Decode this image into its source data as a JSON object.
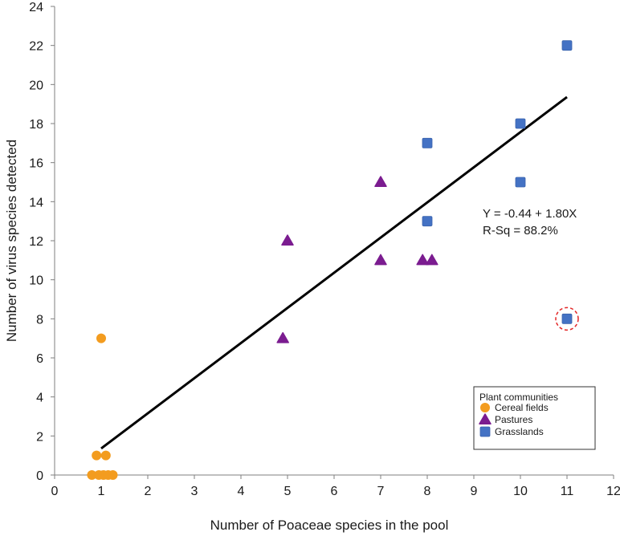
{
  "chart_data": {
    "type": "scatter",
    "xlabel": "Number of Poaceae species in the pool",
    "ylabel": "Number of virus species detected",
    "xlim": [
      0,
      12
    ],
    "ylim": [
      0,
      24
    ],
    "xticks": [
      "0",
      "1",
      "2",
      "3",
      "4",
      "5",
      "6",
      "7",
      "8",
      "9",
      "10",
      "11",
      "12"
    ],
    "yticks": [
      "0",
      "2",
      "4",
      "6",
      "8",
      "10",
      "12",
      "14",
      "16",
      "18",
      "20",
      "22",
      "24"
    ],
    "grid": false,
    "legend": {
      "title": "Plant communities",
      "position": "bottom-right"
    },
    "series": [
      {
        "name": "Cereal fields",
        "marker": "circle",
        "color": "#F39C1F",
        "points": [
          {
            "x": 1.0,
            "y": 7
          },
          {
            "x": 0.9,
            "y": 1
          },
          {
            "x": 1.1,
            "y": 1
          },
          {
            "x": 0.8,
            "y": 0
          },
          {
            "x": 0.95,
            "y": 0
          },
          {
            "x": 1.05,
            "y": 0
          },
          {
            "x": 1.15,
            "y": 0
          },
          {
            "x": 1.25,
            "y": 0
          }
        ]
      },
      {
        "name": "Pastures",
        "marker": "triangle",
        "color": "#7B1C90",
        "points": [
          {
            "x": 5.0,
            "y": 12
          },
          {
            "x": 4.9,
            "y": 7
          },
          {
            "x": 7.0,
            "y": 15
          },
          {
            "x": 7.0,
            "y": 11
          },
          {
            "x": 7.9,
            "y": 11
          },
          {
            "x": 8.1,
            "y": 11
          }
        ]
      },
      {
        "name": "Grasslands",
        "marker": "square",
        "color": "#4472C4",
        "points": [
          {
            "x": 11.0,
            "y": 22
          },
          {
            "x": 10.0,
            "y": 18
          },
          {
            "x": 8.0,
            "y": 17
          },
          {
            "x": 10.0,
            "y": 15
          },
          {
            "x": 8.0,
            "y": 13
          },
          {
            "x": 11.0,
            "y": 8
          }
        ]
      }
    ],
    "regression": {
      "x_start": 1.0,
      "x_end": 11.0,
      "intercept": -0.44,
      "slope": 1.8,
      "color": "#000000"
    },
    "annotations": {
      "equation": "Y = -0.44 + 1.80X",
      "rsq": "R-Sq = 88.2%"
    },
    "highlight": {
      "x": 11.0,
      "y": 8,
      "color": "#E32626"
    }
  }
}
